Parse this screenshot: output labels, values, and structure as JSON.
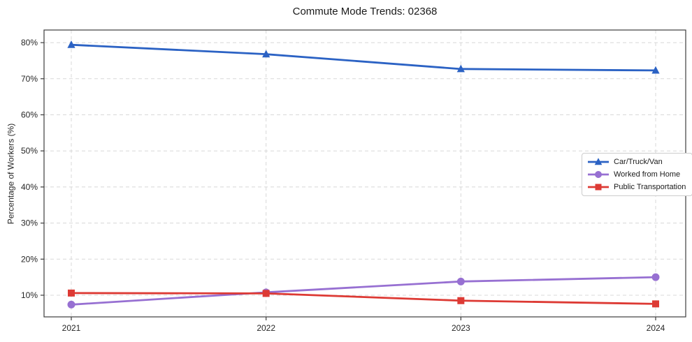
{
  "chart_data": {
    "type": "line",
    "title": "Commute Mode Trends: 02368",
    "xlabel": "",
    "ylabel": "Percentage of Workers (%)",
    "categories": [
      "2021",
      "2022",
      "2023",
      "2024"
    ],
    "series": [
      {
        "name": "Car/Truck/Van",
        "color": "#2b62c4",
        "marker": "triangle",
        "values": [
          79.4,
          76.8,
          72.7,
          72.3
        ]
      },
      {
        "name": "Worked from Home",
        "color": "#9770d2",
        "marker": "circle",
        "values": [
          7.4,
          10.8,
          13.8,
          15.0
        ]
      },
      {
        "name": "Public Transportation",
        "color": "#dd3a34",
        "marker": "square",
        "values": [
          10.6,
          10.5,
          8.5,
          7.6
        ]
      }
    ],
    "ylim": [
      4,
      83.5
    ],
    "yticks": [
      10,
      20,
      30,
      40,
      50,
      60,
      70,
      80
    ],
    "ytick_format": "{v}%",
    "grid": true,
    "legend_position": "right-middle",
    "colors": {
      "gridline": "#d8d8d8",
      "spine": "#3c3c3c",
      "background": "#ffffff"
    }
  }
}
